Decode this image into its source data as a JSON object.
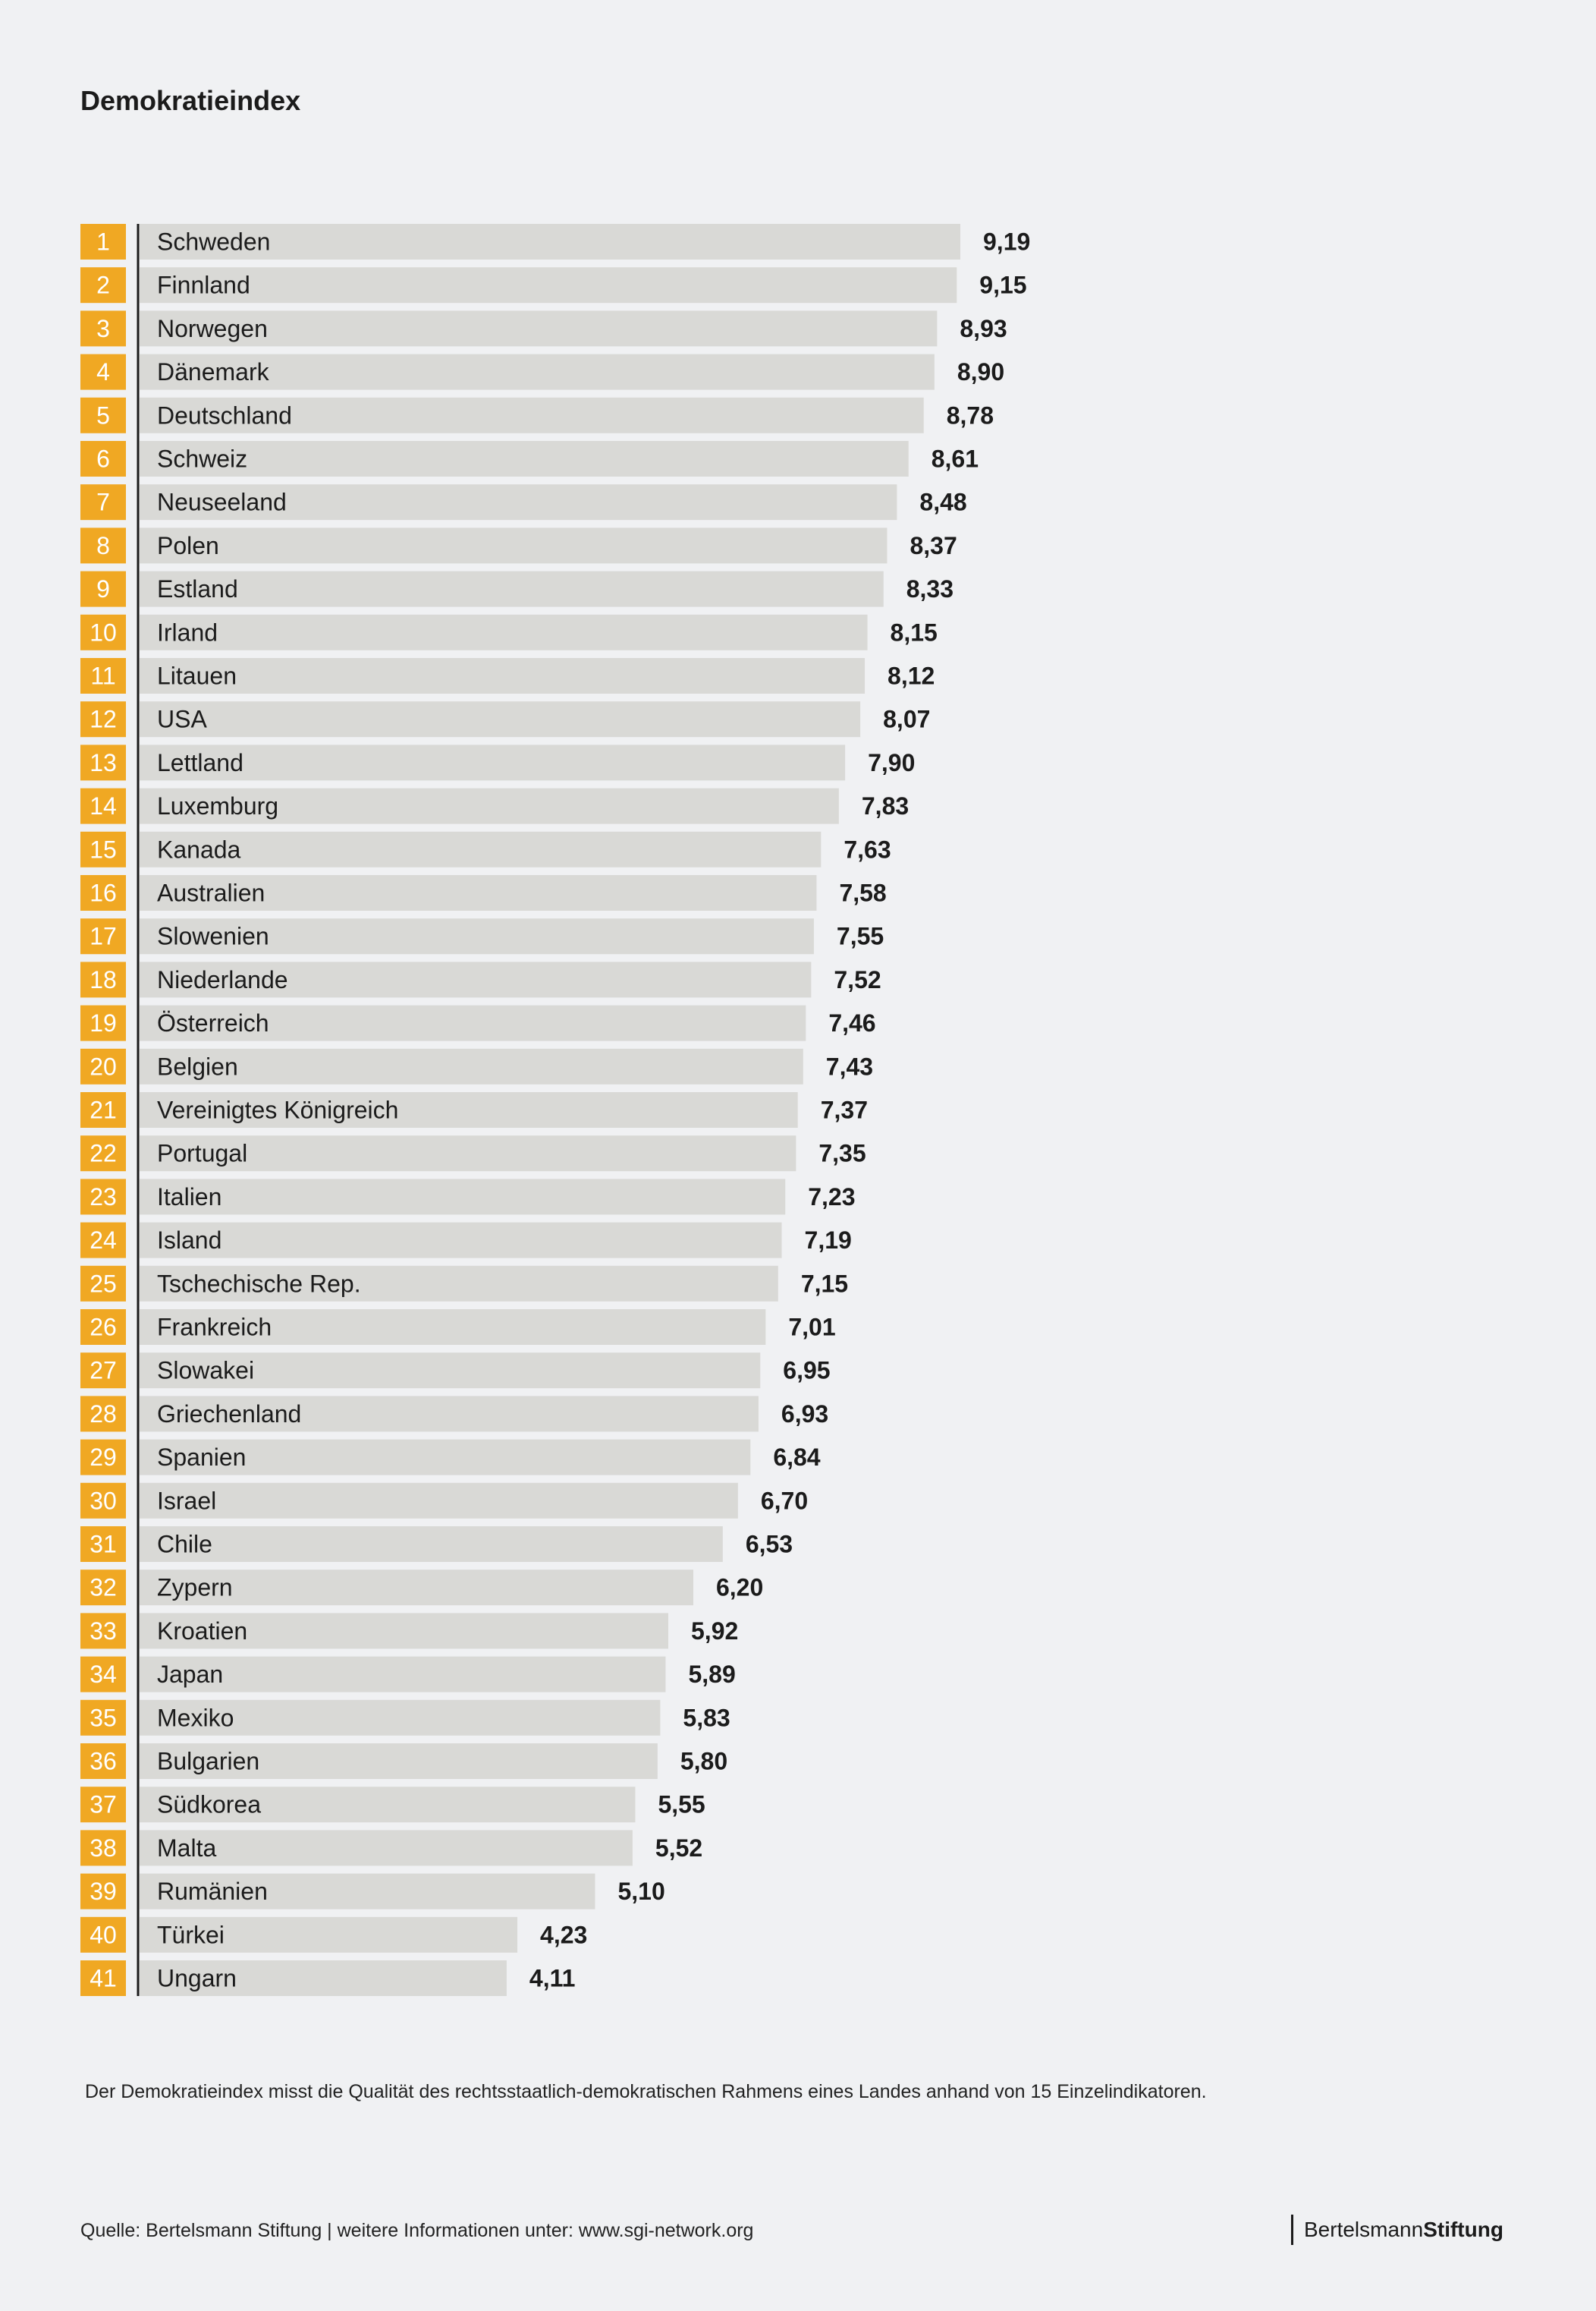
{
  "title": "Demokratieindex",
  "chart_data": {
    "type": "bar",
    "orientation": "horizontal",
    "title": "Demokratieindex",
    "categories": [
      "Schweden",
      "Finnland",
      "Norwegen",
      "Dänemark",
      "Deutschland",
      "Schweiz",
      "Neuseeland",
      "Polen",
      "Estland",
      "Irland",
      "Litauen",
      "USA",
      "Lettland",
      "Luxemburg",
      "Kanada",
      "Australien",
      "Slowenien",
      "Niederlande",
      "Österreich",
      "Belgien",
      "Vereinigtes Königreich",
      "Portugal",
      "Italien",
      "Island",
      "Tschechische Rep.",
      "Frankreich",
      "Slowakei",
      "Griechenland",
      "Spanien",
      "Israel",
      "Chile",
      "Zypern",
      "Kroatien",
      "Japan",
      "Mexiko",
      "Bulgarien",
      "Südkorea",
      "Malta",
      "Rumänien",
      "Türkei",
      "Ungarn"
    ],
    "ranks": [
      "1",
      "2",
      "3",
      "4",
      "5",
      "6",
      "7",
      "8",
      "9",
      "10",
      "11",
      "12",
      "13",
      "14",
      "15",
      "16",
      "17",
      "18",
      "19",
      "20",
      "21",
      "22",
      "23",
      "24",
      "25",
      "26",
      "27",
      "28",
      "29",
      "30",
      "31",
      "32",
      "33",
      "34",
      "35",
      "36",
      "37",
      "38",
      "39",
      "40",
      "41"
    ],
    "values": [
      9.19,
      9.15,
      8.93,
      8.9,
      8.78,
      8.61,
      8.48,
      8.37,
      8.33,
      8.15,
      8.12,
      8.07,
      7.9,
      7.83,
      7.63,
      7.58,
      7.55,
      7.52,
      7.46,
      7.43,
      7.37,
      7.35,
      7.23,
      7.19,
      7.15,
      7.01,
      6.95,
      6.93,
      6.84,
      6.7,
      6.53,
      6.2,
      5.92,
      5.89,
      5.83,
      5.8,
      5.55,
      5.52,
      5.1,
      4.23,
      4.11
    ],
    "value_labels": [
      "9,19",
      "9,15",
      "8,93",
      "8,90",
      "8,78",
      "8,61",
      "8,48",
      "8,37",
      "8,33",
      "8,15",
      "8,12",
      "8,07",
      "7,90",
      "7,83",
      "7,63",
      "7,58",
      "7,55",
      "7,52",
      "7,46",
      "7,43",
      "7,37",
      "7,35",
      "7,23",
      "7,19",
      "7,15",
      "7,01",
      "6,95",
      "6,93",
      "6,84",
      "6,70",
      "6,53",
      "6,20",
      "5,92",
      "5,89",
      "5,83",
      "5,80",
      "5,55",
      "5,52",
      "5,10",
      "4,23",
      "4,11"
    ],
    "xlim": [
      0,
      10
    ],
    "colors": {
      "rank_box": "#f0a823",
      "bar": "#d9d9d6",
      "axis": "#1b1b1b"
    }
  },
  "note": "Der Demokratieindex misst die Qualität des rechtsstaatlich-demokratischen Rahmens eines Landes anhand von 15 Einzelindikatoren.",
  "footer": "Quelle: Bertelsmann Stiftung  |  weitere Informationen unter: www.sgi-network.org",
  "brand": {
    "part1": "Bertelsmann",
    "part2": "Stiftung"
  }
}
